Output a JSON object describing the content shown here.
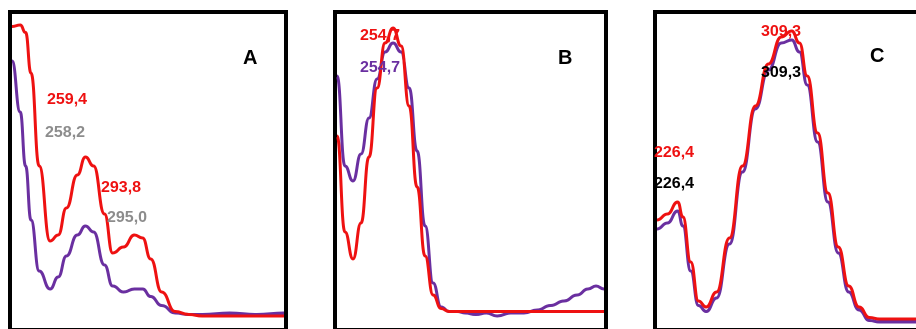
{
  "colors": {
    "red": "#ee1111",
    "purple": "#6a2fa0",
    "gray": "#8c8c8c",
    "black": "#000000",
    "frame": "#000000"
  },
  "chart_data": [
    {
      "type": "line",
      "panel_label": "A",
      "xlabel": "",
      "ylabel": "",
      "grid": false,
      "series": [
        {
          "color": "red",
          "x": [
            0,
            0.03,
            0.05,
            0.07,
            0.1,
            0.14,
            0.17,
            0.2,
            0.24,
            0.27,
            0.3,
            0.34,
            0.37,
            0.41,
            0.45,
            0.48,
            0.51,
            0.55,
            0.6,
            0.65,
            0.7,
            0.8,
            0.9,
            1.0
          ],
          "y": [
            0.985,
            0.99,
            0.965,
            0.83,
            0.52,
            0.27,
            0.29,
            0.38,
            0.49,
            0.55,
            0.52,
            0.36,
            0.23,
            0.25,
            0.29,
            0.28,
            0.21,
            0.1,
            0.035,
            0.025,
            0.02,
            0.02,
            0.02,
            0.02
          ]
        },
        {
          "color": "purple",
          "x": [
            0,
            0.03,
            0.05,
            0.07,
            0.1,
            0.14,
            0.17,
            0.2,
            0.24,
            0.27,
            0.3,
            0.34,
            0.37,
            0.41,
            0.45,
            0.48,
            0.51,
            0.55,
            0.6,
            0.65,
            0.7,
            0.8,
            0.9,
            1.0
          ],
          "y": [
            0.87,
            0.7,
            0.52,
            0.34,
            0.17,
            0.11,
            0.15,
            0.22,
            0.29,
            0.32,
            0.3,
            0.19,
            0.12,
            0.1,
            0.11,
            0.11,
            0.085,
            0.055,
            0.03,
            0.025,
            0.025,
            0.03,
            0.025,
            0.03
          ]
        }
      ],
      "annotations": [
        {
          "text": "259,4",
          "color": "red"
        },
        {
          "text": "258,2",
          "color": "gray"
        },
        {
          "text": "293,8",
          "color": "red"
        },
        {
          "text": "295,0",
          "color": "gray"
        }
      ]
    },
    {
      "type": "line",
      "panel_label": "B",
      "xlabel": "",
      "ylabel": "",
      "grid": false,
      "series": [
        {
          "color": "red",
          "x": [
            0,
            0.03,
            0.06,
            0.09,
            0.12,
            0.15,
            0.18,
            0.21,
            0.24,
            0.27,
            0.3,
            0.33,
            0.36,
            0.39,
            0.42,
            0.45,
            0.48,
            0.52,
            0.6,
            0.7,
            0.8,
            0.9,
            1.0
          ],
          "y": [
            0.62,
            0.3,
            0.21,
            0.33,
            0.55,
            0.78,
            0.93,
            0.98,
            0.92,
            0.72,
            0.45,
            0.22,
            0.09,
            0.045,
            0.035,
            0.035,
            0.035,
            0.035,
            0.035,
            0.035,
            0.035,
            0.035,
            0.035
          ]
        },
        {
          "color": "purple",
          "x": [
            0,
            0.03,
            0.06,
            0.09,
            0.12,
            0.15,
            0.18,
            0.21,
            0.24,
            0.27,
            0.3,
            0.33,
            0.36,
            0.39,
            0.42,
            0.45,
            0.48,
            0.52,
            0.56,
            0.6,
            0.65,
            0.7,
            0.75,
            0.8,
            0.85,
            0.9,
            0.94,
            0.97,
            1.0
          ],
          "y": [
            0.82,
            0.52,
            0.47,
            0.56,
            0.68,
            0.81,
            0.9,
            0.93,
            0.9,
            0.78,
            0.57,
            0.32,
            0.13,
            0.05,
            0.035,
            0.035,
            0.03,
            0.025,
            0.03,
            0.02,
            0.03,
            0.03,
            0.04,
            0.055,
            0.07,
            0.09,
            0.11,
            0.12,
            0.11
          ]
        }
      ],
      "annotations": [
        {
          "text": "254,7",
          "color": "red"
        },
        {
          "text": "254,7",
          "color": "purple"
        }
      ]
    },
    {
      "type": "line",
      "panel_label": "C",
      "xlabel": "",
      "ylabel": "",
      "grid": false,
      "series": [
        {
          "color": "red",
          "x": [
            0,
            0.04,
            0.08,
            0.1,
            0.13,
            0.16,
            0.19,
            0.23,
            0.28,
            0.33,
            0.38,
            0.43,
            0.48,
            0.52,
            0.55,
            0.58,
            0.62,
            0.66,
            0.7,
            0.74,
            0.78,
            0.82,
            0.86,
            0.9,
            1.0
          ],
          "y": [
            0.34,
            0.36,
            0.4,
            0.35,
            0.2,
            0.07,
            0.05,
            0.1,
            0.28,
            0.52,
            0.72,
            0.86,
            0.95,
            0.97,
            0.93,
            0.82,
            0.63,
            0.43,
            0.25,
            0.12,
            0.05,
            0.015,
            0.01,
            0.01,
            0.01
          ]
        },
        {
          "color": "purple",
          "x": [
            0,
            0.04,
            0.08,
            0.1,
            0.13,
            0.16,
            0.19,
            0.23,
            0.28,
            0.33,
            0.38,
            0.43,
            0.48,
            0.52,
            0.55,
            0.58,
            0.62,
            0.66,
            0.7,
            0.74,
            0.78,
            0.82,
            0.86,
            0.9,
            1.0
          ],
          "y": [
            0.31,
            0.33,
            0.37,
            0.32,
            0.17,
            0.055,
            0.035,
            0.08,
            0.26,
            0.5,
            0.71,
            0.84,
            0.93,
            0.94,
            0.9,
            0.79,
            0.6,
            0.4,
            0.23,
            0.1,
            0.04,
            0.005,
            0.0,
            0.0,
            0.0
          ]
        }
      ],
      "annotations": [
        {
          "text": "309,3",
          "color": "red"
        },
        {
          "text": "309,3",
          "color": "black"
        },
        {
          "text": "226,4",
          "color": "red"
        },
        {
          "text": "226,4",
          "color": "black"
        }
      ]
    }
  ]
}
